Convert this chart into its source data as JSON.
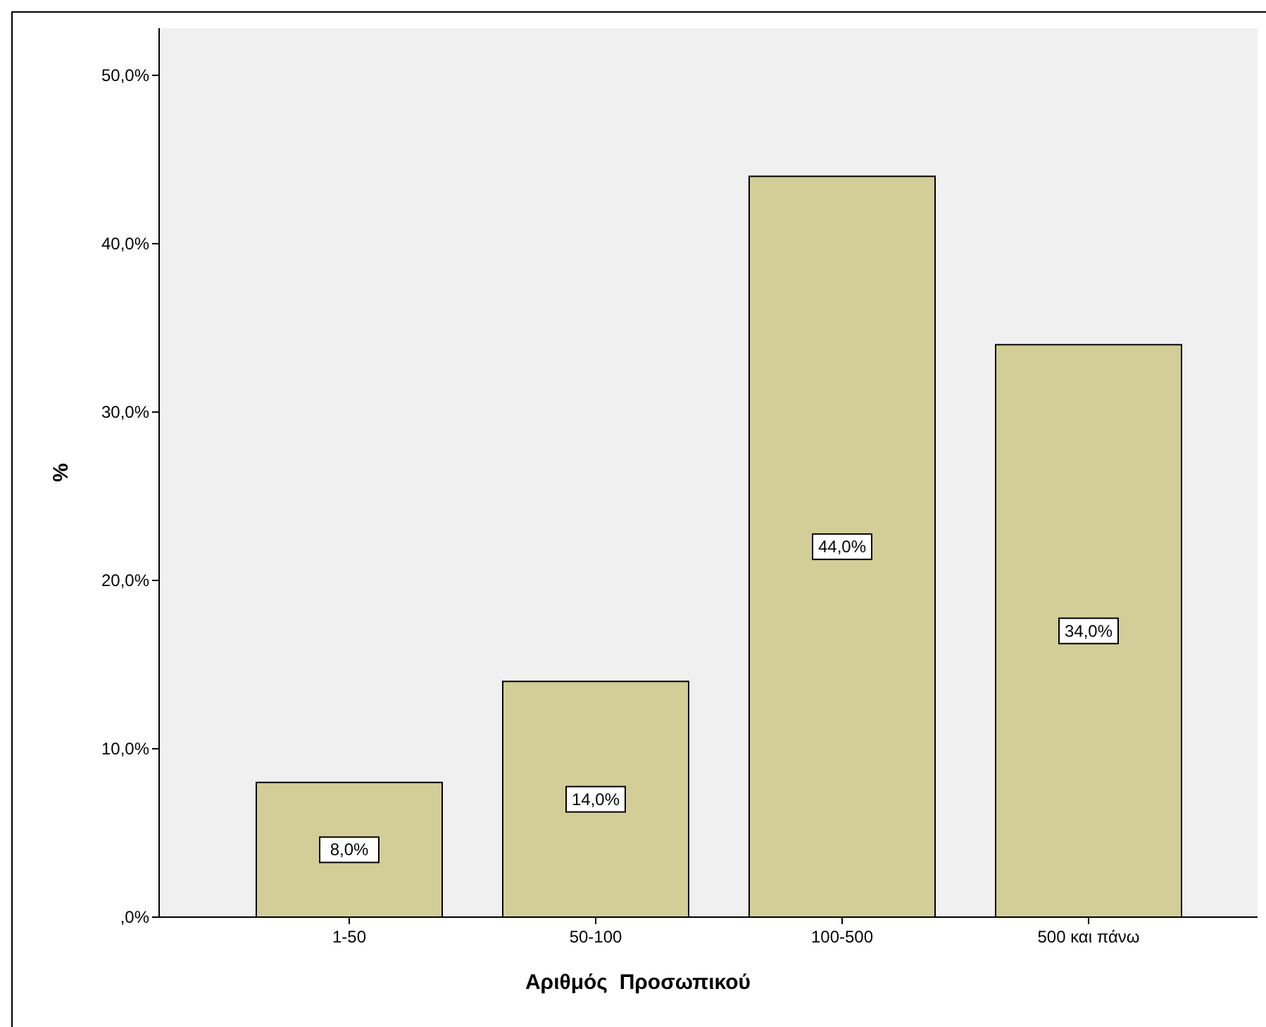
{
  "chart_data": {
    "type": "bar",
    "xlabel": "Αριθμός  Προσωπικού",
    "ylabel": "%",
    "categories": [
      "1-50",
      "50-100",
      "100-500",
      "500 και πάνω"
    ],
    "values": [
      8,
      14,
      44,
      34
    ],
    "value_labels": [
      "8,0%",
      "14,0%",
      "44,0%",
      "34,0%"
    ],
    "color": "#d3ce97",
    "ylim": [
      0,
      52.8
    ],
    "yticks": [
      {
        "value": 0,
        "label": ",0%"
      },
      {
        "value": 10,
        "label": "10,0%"
      },
      {
        "value": 20,
        "label": "20,0%"
      },
      {
        "value": 30,
        "label": "30,0%"
      },
      {
        "value": 40,
        "label": "40,0%"
      },
      {
        "value": 50,
        "label": "50,0%"
      }
    ],
    "grid": false
  }
}
